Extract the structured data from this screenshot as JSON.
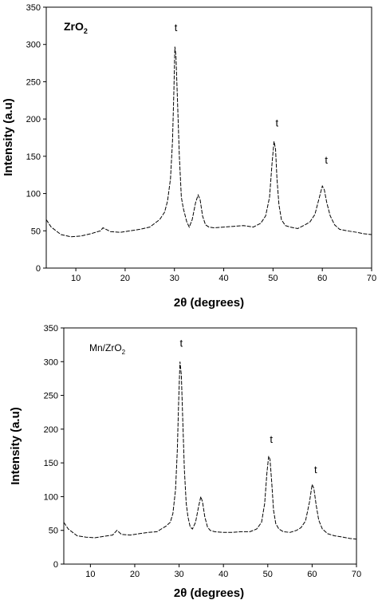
{
  "chart_data": [
    {
      "type": "line",
      "title": "",
      "panel_label": {
        "main": "ZrO",
        "sub": "2"
      },
      "xlabel": "2θ (degrees)",
      "ylabel": "Intensity (a.u)",
      "xlim": [
        4,
        70
      ],
      "ylim": [
        0,
        350
      ],
      "xticks": [
        10,
        20,
        30,
        40,
        50,
        60,
        70
      ],
      "yticks": [
        0,
        50,
        100,
        150,
        200,
        250,
        300,
        350
      ],
      "grid": false,
      "series": [
        {
          "x": [
            4,
            5,
            7,
            9,
            11,
            13,
            15,
            15.5,
            17,
            19,
            21,
            23,
            25,
            26,
            27,
            28,
            28.6,
            29.2,
            29.6,
            29.9,
            30.1,
            30.3,
            30.6,
            31,
            31.4,
            31.8,
            32.5,
            33,
            33.6,
            34.3,
            34.8,
            35.2,
            35.7,
            36.3,
            37,
            38,
            40,
            42,
            44,
            46,
            47.5,
            48.5,
            49.3,
            49.8,
            50.2,
            50.5,
            50.8,
            51.2,
            51.7,
            52.5,
            53.5,
            55,
            56.5,
            57.5,
            58.5,
            59.4,
            60,
            60.4,
            60.9,
            61.6,
            62.5,
            63.5,
            65,
            67,
            68.5,
            70
          ],
          "y": [
            65,
            55,
            45,
            42,
            43,
            46,
            50,
            54,
            49,
            48,
            50,
            52,
            55,
            60,
            65,
            75,
            90,
            120,
            170,
            240,
            297,
            285,
            230,
            150,
            95,
            80,
            62,
            55,
            65,
            88,
            98,
            92,
            70,
            58,
            55,
            54,
            55,
            56,
            57,
            55,
            60,
            70,
            95,
            140,
            170,
            160,
            120,
            85,
            65,
            57,
            55,
            53,
            58,
            62,
            72,
            95,
            110,
            105,
            88,
            70,
            58,
            52,
            50,
            48,
            46,
            45
          ]
        }
      ],
      "annotations": [
        {
          "text": "t",
          "x": 30.3,
          "y": 318
        },
        {
          "text": "t",
          "x": 50.8,
          "y": 190
        },
        {
          "text": "t",
          "x": 60.8,
          "y": 140
        }
      ]
    },
    {
      "type": "line",
      "title": "",
      "panel_label": {
        "main": "Mn/ZrO",
        "sub": "2"
      },
      "xlabel": "2θ (degrees)",
      "ylabel": "Intensity (a.u)",
      "xlim": [
        4,
        70
      ],
      "ylim": [
        0,
        350
      ],
      "xticks": [
        10,
        20,
        30,
        40,
        50,
        60,
        70
      ],
      "yticks": [
        0,
        50,
        100,
        150,
        200,
        250,
        300,
        350
      ],
      "grid": false,
      "series": [
        {
          "x": [
            4,
            5,
            7,
            9,
            11,
            13,
            15,
            16,
            17,
            19,
            21,
            23,
            25,
            26,
            27,
            28,
            28.6,
            29.2,
            29.6,
            29.9,
            30.2,
            30.5,
            30.8,
            31.2,
            31.6,
            32,
            32.5,
            33,
            33.7,
            34.4,
            34.9,
            35.3,
            35.8,
            36.4,
            37,
            38,
            40,
            42,
            44,
            46,
            47.5,
            48.6,
            49.3,
            49.8,
            50.2,
            50.5,
            50.9,
            51.3,
            51.8,
            52.5,
            53.5,
            55,
            56.5,
            57.5,
            58.5,
            59.4,
            60,
            60.4,
            60.9,
            61.5,
            62.3,
            63.5,
            65,
            67,
            68.5,
            70
          ],
          "y": [
            62,
            52,
            42,
            40,
            39,
            41,
            43,
            50,
            44,
            43,
            45,
            47,
            48,
            52,
            56,
            62,
            75,
            110,
            170,
            240,
            300,
            280,
            220,
            140,
            90,
            70,
            55,
            52,
            62,
            85,
            100,
            92,
            70,
            55,
            50,
            48,
            47,
            47,
            48,
            48,
            52,
            62,
            90,
            135,
            160,
            155,
            120,
            80,
            60,
            52,
            48,
            47,
            50,
            54,
            64,
            92,
            118,
            112,
            88,
            65,
            52,
            45,
            42,
            40,
            38,
            37
          ]
        }
      ],
      "annotations": [
        {
          "text": "t",
          "x": 30.5,
          "y": 322
        },
        {
          "text": "t",
          "x": 50.8,
          "y": 180
        },
        {
          "text": "t",
          "x": 60.8,
          "y": 135
        }
      ]
    }
  ]
}
